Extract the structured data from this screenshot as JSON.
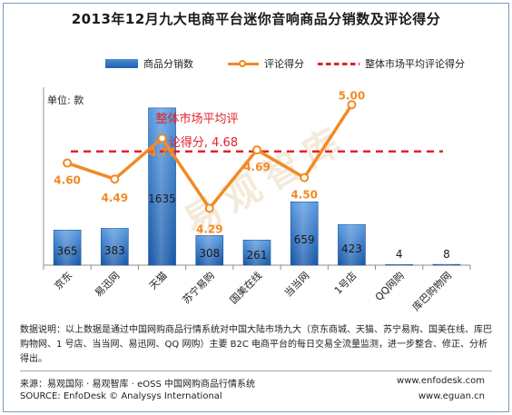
{
  "title": "2013年12月九大电商平台迷你音响商品分销数及评论得分",
  "legend": {
    "bars": "商品分销数",
    "line": "评论得分",
    "avg": "整体市场平均评论得分"
  },
  "unit_label": "单位: 款",
  "avg_annotation_line1": "整体市场平均评",
  "avg_annotation_line2": "论得分, 4.68",
  "watermark": "易观智库",
  "notes": "数据说明：以上数据是通过中国网购商品行情系统对中国大陆市场九大（京东商城、天猫、苏宁易购、国美在线、库巴购物网、1 号店、当当网、易迅网、QQ 网购）主要 B2C 电商平台的每日交易全流量监测，进一步整合、修正、分析得出。",
  "source_cn": "来源：易观国际 · 易观智库 · eOSS 中国网购商品行情系统",
  "source_en": "SOURCE: EnfoDesk © Analysys International",
  "url1": "www.enfodesk.com",
  "url2": "www.eguan.cn",
  "colors": {
    "bar_top": "#5b9be0",
    "bar_bottom": "#1b5aa8",
    "line": "#f28a24",
    "avg": "#e2222a",
    "score_text": "#f28a24"
  },
  "chart_data": {
    "type": "bar",
    "categories": [
      "京东",
      "易迅网",
      "天猫",
      "苏宁易购",
      "国美在线",
      "当当网",
      "1号店",
      "QQ网购",
      "库巴购物网"
    ],
    "series": [
      {
        "name": "商品分销数",
        "type": "bar",
        "values": [
          365,
          383,
          1635,
          308,
          261,
          659,
          423,
          4,
          8
        ]
      },
      {
        "name": "评论得分",
        "type": "line",
        "values": [
          4.6,
          4.49,
          4.77,
          4.29,
          4.69,
          4.5,
          5.0,
          null,
          null
        ]
      }
    ],
    "reference_line": {
      "name": "整体市场平均评论得分",
      "value": 4.68
    },
    "bar_value_labels": [
      "365",
      "383",
      "1635",
      "308",
      "261",
      "659",
      "423",
      "4",
      "8"
    ],
    "score_value_labels": [
      "4.60",
      "4.49",
      "4.77",
      "4.29",
      "4.69",
      "4.50",
      "5.00"
    ],
    "ylabel": "单位: 款",
    "bar_ylim": [
      0,
      1700
    ],
    "score_ylim": [
      3.9,
      5.12
    ],
    "grid": false
  }
}
